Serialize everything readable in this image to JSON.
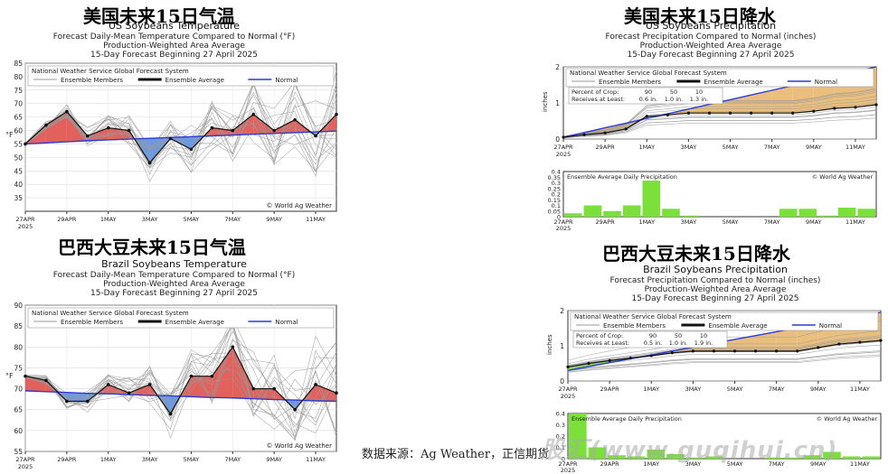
{
  "page": {
    "source_note": "数据来源：Ag Weather，正信期货",
    "watermark": "股汇(www.guqihui.cn)"
  },
  "colors": {
    "above_normal": "#e0504a",
    "below_normal": "#5b8fe0",
    "normal_line": "#2a3bd6",
    "ensemble_member": "#9a9a9a",
    "precip_fill": "#e8b870",
    "precip_bar": "#7be03a",
    "brazil_precip_low_fill": "#7be03a"
  },
  "chart_data": [
    {
      "id": "us-temp",
      "type": "line",
      "big_title": "美国未来15日气温",
      "title": "US Soybeans Temperature",
      "subtitle_lines": [
        "Forecast Daily-Mean Temperature Compared to Normal (°F)",
        "Production-Weighted Area Average",
        "15-Day Forecast Beginning 27 April 2025"
      ],
      "legend_header": "National Weather Service Global Forecast System",
      "legend_items": [
        "Ensemble Members",
        "Ensemble Average",
        "Normal"
      ],
      "credit": "© World Ag Weather",
      "ylabel": "°F",
      "ylim": [
        30,
        85
      ],
      "yticks": [
        35,
        40,
        45,
        50,
        55,
        60,
        65,
        70,
        75,
        80,
        85
      ],
      "x_tick_labels": [
        "27APR",
        "29APR",
        "1MAY",
        "3MAY",
        "5MAY",
        "7MAY",
        "9MAY",
        "11MAY"
      ],
      "x_year": "2025",
      "days": 15,
      "ensemble_average": [
        55,
        62,
        67,
        58,
        61,
        60,
        48,
        57,
        53,
        61,
        60,
        66,
        60,
        64,
        58,
        66
      ],
      "normal": [
        55,
        55.4,
        55.8,
        56.2,
        56.5,
        56.8,
        57.1,
        57.4,
        57.7,
        58.0,
        58.3,
        58.6,
        58.9,
        59.2,
        59.5,
        59.8
      ]
    },
    {
      "id": "us-precip",
      "type": "area",
      "big_title": "美国未来15日降水",
      "title": "US Soybeans Precipitation",
      "subtitle_lines": [
        "Forecast Precipitation Compared to Normal (inches)",
        "Production-Weighted Area Average",
        "15-Day Forecast Beginning 27 April 2025"
      ],
      "legend_header": "National Weather Service Global Forecast System",
      "legend_items": [
        "Ensemble Members",
        "Ensemble Average",
        "Normal"
      ],
      "crop_table": {
        "row1_label": "Percent of Crop:",
        "row1": [
          "90",
          "50",
          "10"
        ],
        "row2_label": "Receives at Least:",
        "row2": [
          "0.6 in.",
          "1.0 in.",
          "1.3 in."
        ]
      },
      "ylabel": "inches",
      "ylim": [
        0,
        2
      ],
      "yticks": [
        0,
        1,
        2
      ],
      "x_tick_labels": [
        "27APR",
        "29APR",
        "1MAY",
        "3MAY",
        "5MAY",
        "7MAY",
        "9MAY",
        "11MAY"
      ],
      "x_year": "2025",
      "cumulative_average": [
        0.05,
        0.12,
        0.17,
        0.28,
        0.63,
        0.67,
        0.72,
        0.72,
        0.72,
        0.72,
        0.72,
        0.72,
        0.77,
        0.85,
        0.88,
        0.95
      ],
      "normal_cumulative": [
        0.05,
        0.18,
        0.31,
        0.44,
        0.57,
        0.7,
        0.83,
        0.96,
        1.09,
        1.22,
        1.35,
        1.48,
        1.61,
        1.74,
        1.87,
        2.0
      ],
      "daily_title": "Ensemble Average Daily Precipitation",
      "daily_credit": "© World Ag Weather",
      "daily_ylim": [
        0,
        0.4
      ],
      "daily_yticks": [
        0,
        0.05,
        0.1,
        0.15,
        0.2,
        0.25,
        0.3,
        0.35,
        0.4
      ],
      "daily_values": [
        0.03,
        0.1,
        0.05,
        0.1,
        0.32,
        0.07,
        0.01,
        0.0,
        0.0,
        0.0,
        0.0,
        0.07,
        0.07,
        0.01,
        0.08,
        0.07
      ]
    },
    {
      "id": "br-temp",
      "type": "line",
      "big_title": "巴西大豆未来15日气温",
      "title": "Brazil Soybeans Temperature",
      "subtitle_lines": [
        "Forecast Daily-Mean Temperature Compared to Normal (°F)",
        "Production-Weighted Area Average",
        "15-Day Forecast Beginning 27 April 2025"
      ],
      "legend_header": "National Weather Service Global Forecast System",
      "legend_items": [
        "Ensemble Members",
        "Ensemble Average",
        "Normal"
      ],
      "credit": "© World Ag Weather",
      "ylabel": "°F",
      "ylim": [
        55,
        90
      ],
      "yticks": [
        55,
        60,
        65,
        70,
        75,
        80,
        85,
        90
      ],
      "x_tick_labels": [
        "27APR",
        "29APR",
        "1MAY",
        "3MAY",
        "5MAY",
        "7MAY",
        "9MAY",
        "11MAY"
      ],
      "x_year": "2025",
      "days": 15,
      "ensemble_average": [
        73,
        72,
        67,
        67,
        71,
        69,
        71,
        64,
        73,
        73,
        80,
        70,
        70,
        65,
        71,
        69
      ],
      "normal": [
        69.5,
        69.3,
        69.1,
        68.9,
        68.8,
        68.6,
        68.4,
        68.3,
        68.1,
        67.9,
        67.8,
        67.6,
        67.4,
        67.3,
        67.1,
        67.0
      ]
    },
    {
      "id": "br-precip",
      "type": "area",
      "big_title": "巴西大豆未来15日降水",
      "title": "Brazil Soybeans Precipitation",
      "subtitle_lines": [
        "Forecast Precipitation Compared to Normal (inches)",
        "Production-Weighted Area Average",
        "15-Day Forecast Beginning 27 April 2025"
      ],
      "legend_header": "National Weather Service Global Forecast System",
      "legend_items": [
        "Ensemble Members",
        "Ensemble Average",
        "Normal"
      ],
      "crop_table": {
        "row1_label": "Percent of Crop:",
        "row1": [
          "90",
          "50",
          "10"
        ],
        "row2_label": "Receives at Least:",
        "row2": [
          "0.5 in.",
          "1.0 in.",
          "1.9 in."
        ]
      },
      "ylabel": "inches",
      "ylim": [
        0,
        2
      ],
      "yticks": [
        0,
        1,
        2
      ],
      "x_tick_labels": [
        "27APR",
        "29APR",
        "1MAY",
        "3MAY",
        "5MAY",
        "7MAY",
        "9MAY",
        "11MAY"
      ],
      "x_year": "2025",
      "cumulative_average": [
        0.4,
        0.5,
        0.58,
        0.65,
        0.72,
        0.8,
        0.85,
        0.85,
        0.85,
        0.85,
        0.85,
        0.85,
        0.95,
        1.05,
        1.1,
        1.15
      ],
      "normal_cumulative": [
        0.3,
        0.41,
        0.52,
        0.63,
        0.74,
        0.85,
        0.96,
        1.07,
        1.18,
        1.29,
        1.4,
        1.51,
        1.62,
        1.73,
        1.84,
        1.95
      ],
      "daily_title": "Ensemble Average Daily Precipitation",
      "daily_credit": "© World Ag Weather",
      "daily_ylim": [
        0,
        0.4
      ],
      "daily_yticks": [
        0,
        0.1,
        0.2,
        0.3,
        0.4
      ],
      "daily_values": [
        0.4,
        0.1,
        0.03,
        0.02,
        0.08,
        0.04,
        0.01,
        0.02,
        0.0,
        0.0,
        0.01,
        0.01,
        0.03,
        0.06,
        0.02,
        0.02
      ]
    }
  ]
}
